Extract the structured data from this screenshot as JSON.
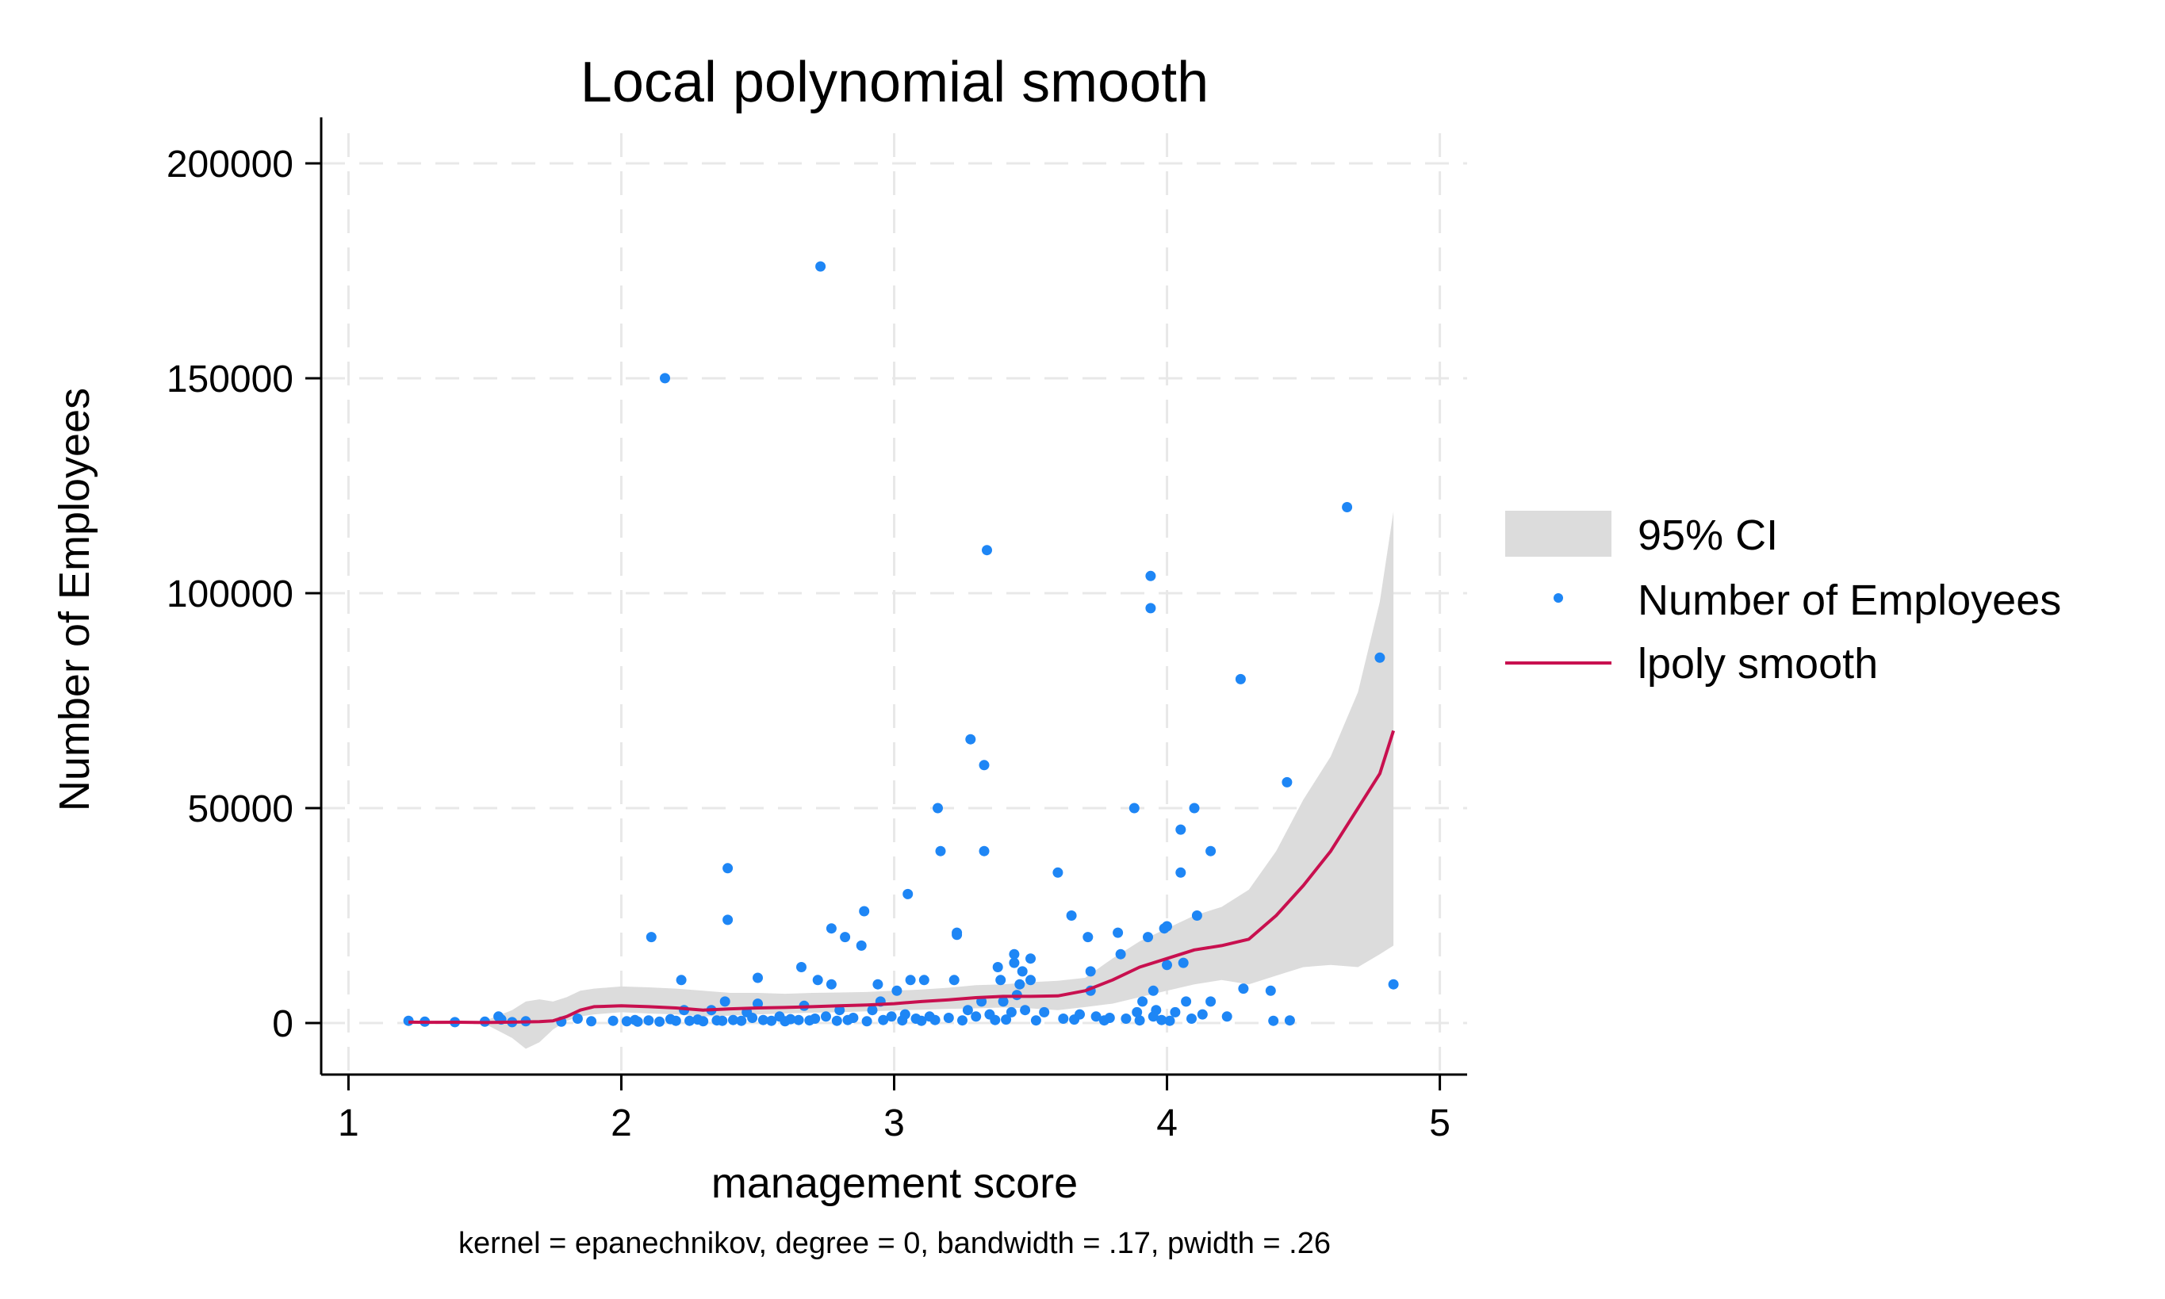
{
  "chart_data": {
    "type": "scatter",
    "title": "Local polynomial smooth",
    "xlabel": "management score",
    "ylabel": "Number of Employees",
    "note": "kernel = epanechnikov, degree = 0, bandwidth = .17, pwidth = .26",
    "xlim": [
      0.9,
      5.1
    ],
    "ylim": [
      -12000,
      207000
    ],
    "x_ticks": [
      1,
      2,
      3,
      4,
      5
    ],
    "y_ticks": [
      0,
      50000,
      100000,
      150000,
      200000
    ],
    "x_tick_labels": [
      "1",
      "2",
      "3",
      "4",
      "5"
    ],
    "y_tick_labels": [
      "0",
      "50000",
      "100000",
      "150000",
      "200000"
    ],
    "grid": true,
    "legend_position": "right",
    "legend": [
      {
        "label": "95% CI",
        "kind": "band",
        "color": "#dcdcdc"
      },
      {
        "label": "Number of Employees",
        "kind": "marker",
        "color": "#1e86f5"
      },
      {
        "label": "lpoly smooth",
        "kind": "line",
        "color": "#c8104f"
      }
    ],
    "colors": {
      "ci": "#dcdcdc",
      "points": "#1e86f5",
      "smooth": "#c8104f",
      "grid": "#e8e8e8",
      "axis": "#000000"
    },
    "series": [
      {
        "name": "Number of Employees",
        "type": "scatter",
        "points": [
          [
            1.22,
            500
          ],
          [
            1.28,
            300
          ],
          [
            1.39,
            200
          ],
          [
            1.5,
            300
          ],
          [
            1.55,
            1500
          ],
          [
            1.56,
            800
          ],
          [
            1.6,
            200
          ],
          [
            1.65,
            400
          ],
          [
            1.78,
            300
          ],
          [
            1.84,
            1000
          ],
          [
            1.89,
            400
          ],
          [
            1.97,
            500
          ],
          [
            2.02,
            400
          ],
          [
            2.05,
            700
          ],
          [
            2.06,
            300
          ],
          [
            2.1,
            600
          ],
          [
            2.11,
            20000
          ],
          [
            2.14,
            300
          ],
          [
            2.16,
            150000
          ],
          [
            2.18,
            900
          ],
          [
            2.2,
            500
          ],
          [
            2.22,
            10000
          ],
          [
            2.23,
            3000
          ],
          [
            2.25,
            500
          ],
          [
            2.28,
            800
          ],
          [
            2.3,
            400
          ],
          [
            2.33,
            3000
          ],
          [
            2.35,
            600
          ],
          [
            2.37,
            500
          ],
          [
            2.38,
            5000
          ],
          [
            2.39,
            24000
          ],
          [
            2.39,
            36000
          ],
          [
            2.41,
            700
          ],
          [
            2.44,
            500
          ],
          [
            2.46,
            2500
          ],
          [
            2.48,
            1200
          ],
          [
            2.5,
            10500
          ],
          [
            2.5,
            4500
          ],
          [
            2.52,
            700
          ],
          [
            2.55,
            500
          ],
          [
            2.58,
            1500
          ],
          [
            2.6,
            400
          ],
          [
            2.62,
            900
          ],
          [
            2.65,
            700
          ],
          [
            2.66,
            13000
          ],
          [
            2.67,
            4000
          ],
          [
            2.69,
            600
          ],
          [
            2.71,
            1000
          ],
          [
            2.72,
            10000
          ],
          [
            2.73,
            176000
          ],
          [
            2.75,
            1500
          ],
          [
            2.77,
            9000
          ],
          [
            2.77,
            22000
          ],
          [
            2.79,
            500
          ],
          [
            2.8,
            3000
          ],
          [
            2.82,
            20000
          ],
          [
            2.83,
            700
          ],
          [
            2.85,
            1200
          ],
          [
            2.88,
            18000
          ],
          [
            2.89,
            26000
          ],
          [
            2.9,
            400
          ],
          [
            2.92,
            3000
          ],
          [
            2.94,
            9000
          ],
          [
            2.95,
            5000
          ],
          [
            2.96,
            700
          ],
          [
            2.99,
            1500
          ],
          [
            3.01,
            7500
          ],
          [
            3.03,
            600
          ],
          [
            3.04,
            2000
          ],
          [
            3.05,
            30000
          ],
          [
            3.06,
            10000
          ],
          [
            3.08,
            1000
          ],
          [
            3.1,
            500
          ],
          [
            3.11,
            10000
          ],
          [
            3.13,
            1500
          ],
          [
            3.15,
            700
          ],
          [
            3.16,
            50000
          ],
          [
            3.17,
            40000
          ],
          [
            3.2,
            1200
          ],
          [
            3.22,
            10000
          ],
          [
            3.23,
            21000
          ],
          [
            3.23,
            20500
          ],
          [
            3.25,
            600
          ],
          [
            3.27,
            3000
          ],
          [
            3.28,
            66000
          ],
          [
            3.3,
            1500
          ],
          [
            3.32,
            5000
          ],
          [
            3.33,
            60000
          ],
          [
            3.33,
            40000
          ],
          [
            3.34,
            110000
          ],
          [
            3.35,
            2000
          ],
          [
            3.37,
            700
          ],
          [
            3.38,
            13000
          ],
          [
            3.39,
            10000
          ],
          [
            3.4,
            5000
          ],
          [
            3.41,
            800
          ],
          [
            3.43,
            2500
          ],
          [
            3.44,
            16000
          ],
          [
            3.44,
            14000
          ],
          [
            3.45,
            6500
          ],
          [
            3.46,
            9000
          ],
          [
            3.47,
            12000
          ],
          [
            3.48,
            3000
          ],
          [
            3.5,
            15000
          ],
          [
            3.5,
            10000
          ],
          [
            3.52,
            600
          ],
          [
            3.55,
            2500
          ],
          [
            3.6,
            35000
          ],
          [
            3.62,
            1000
          ],
          [
            3.65,
            25000
          ],
          [
            3.66,
            800
          ],
          [
            3.68,
            2000
          ],
          [
            3.71,
            20000
          ],
          [
            3.72,
            12000
          ],
          [
            3.72,
            7500
          ],
          [
            3.74,
            1500
          ],
          [
            3.77,
            600
          ],
          [
            3.79,
            1200
          ],
          [
            3.82,
            21000
          ],
          [
            3.83,
            16000
          ],
          [
            3.85,
            1000
          ],
          [
            3.88,
            50000
          ],
          [
            3.89,
            2500
          ],
          [
            3.9,
            600
          ],
          [
            3.91,
            5000
          ],
          [
            3.93,
            20000
          ],
          [
            3.94,
            104000
          ],
          [
            3.94,
            96500
          ],
          [
            3.95,
            1500
          ],
          [
            3.95,
            7500
          ],
          [
            3.96,
            3000
          ],
          [
            3.98,
            700
          ],
          [
            3.99,
            22000
          ],
          [
            4.0,
            22500
          ],
          [
            4.0,
            13500
          ],
          [
            4.01,
            500
          ],
          [
            4.03,
            2500
          ],
          [
            4.05,
            45000
          ],
          [
            4.05,
            35000
          ],
          [
            4.06,
            14000
          ],
          [
            4.07,
            5000
          ],
          [
            4.09,
            1000
          ],
          [
            4.1,
            50000
          ],
          [
            4.11,
            25000
          ],
          [
            4.13,
            2000
          ],
          [
            4.16,
            40000
          ],
          [
            4.16,
            5000
          ],
          [
            4.22,
            1500
          ],
          [
            4.27,
            80000
          ],
          [
            4.28,
            8000
          ],
          [
            4.38,
            7500
          ],
          [
            4.39,
            500
          ],
          [
            4.44,
            56000
          ],
          [
            4.45,
            600
          ],
          [
            4.66,
            120000
          ],
          [
            4.78,
            85000
          ],
          [
            4.83,
            9000
          ]
        ]
      },
      {
        "name": "lpoly smooth",
        "type": "line",
        "points": [
          [
            1.22,
            200
          ],
          [
            1.3,
            150
          ],
          [
            1.4,
            180
          ],
          [
            1.5,
            100
          ],
          [
            1.6,
            200
          ],
          [
            1.7,
            300
          ],
          [
            1.75,
            500
          ],
          [
            1.8,
            1500
          ],
          [
            1.85,
            3000
          ],
          [
            1.9,
            3800
          ],
          [
            2.0,
            4000
          ],
          [
            2.1,
            3800
          ],
          [
            2.2,
            3500
          ],
          [
            2.3,
            3000
          ],
          [
            2.4,
            3300
          ],
          [
            2.5,
            3500
          ],
          [
            2.6,
            3600
          ],
          [
            2.7,
            3800
          ],
          [
            2.8,
            4000
          ],
          [
            2.9,
            4200
          ],
          [
            3.0,
            4500
          ],
          [
            3.1,
            5000
          ],
          [
            3.2,
            5400
          ],
          [
            3.3,
            5900
          ],
          [
            3.4,
            6200
          ],
          [
            3.5,
            6200
          ],
          [
            3.6,
            6300
          ],
          [
            3.7,
            7500
          ],
          [
            3.8,
            10000
          ],
          [
            3.9,
            13000
          ],
          [
            4.0,
            15000
          ],
          [
            4.1,
            17000
          ],
          [
            4.2,
            18000
          ],
          [
            4.3,
            19500
          ],
          [
            4.4,
            25000
          ],
          [
            4.5,
            32000
          ],
          [
            4.6,
            40000
          ],
          [
            4.7,
            50000
          ],
          [
            4.78,
            58000
          ],
          [
            4.83,
            68000
          ]
        ]
      },
      {
        "name": "95% CI",
        "type": "area",
        "x": [
          1.22,
          1.5,
          1.6,
          1.65,
          1.7,
          1.75,
          1.8,
          1.85,
          1.9,
          2.0,
          2.1,
          2.2,
          2.3,
          2.4,
          2.5,
          2.6,
          2.7,
          2.8,
          2.9,
          3.0,
          3.1,
          3.2,
          3.3,
          3.4,
          3.5,
          3.6,
          3.7,
          3.8,
          3.9,
          4.0,
          4.1,
          4.2,
          4.3,
          4.4,
          4.5,
          4.6,
          4.7,
          4.78,
          4.83
        ],
        "upper": [
          300,
          500,
          3000,
          5000,
          5500,
          5000,
          6000,
          7500,
          8000,
          8500,
          8300,
          8000,
          7500,
          7000,
          7000,
          6800,
          7000,
          7100,
          7200,
          7500,
          7800,
          8200,
          8800,
          9000,
          9500,
          9800,
          10500,
          15000,
          19000,
          22000,
          25000,
          27000,
          31000,
          40000,
          52000,
          62000,
          77000,
          98000,
          119000
        ],
        "lower": [
          100,
          -200,
          -3500,
          -6000,
          -4500,
          -1500,
          500,
          1500,
          2000,
          2500,
          2200,
          2000,
          1500,
          1700,
          2000,
          2200,
          2400,
          2500,
          2700,
          2900,
          3100,
          3300,
          3400,
          3600,
          3400,
          3000,
          3700,
          4500,
          6000,
          7500,
          9000,
          10000,
          9000,
          11000,
          13000,
          13500,
          13000,
          16000,
          18000
        ]
      }
    ]
  }
}
